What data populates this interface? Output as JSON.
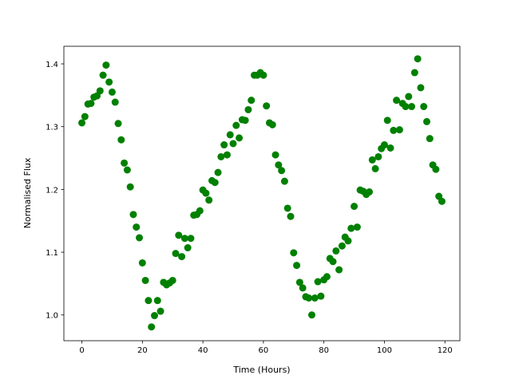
{
  "chart_data": {
    "type": "scatter",
    "xlabel": "Time (Hours)",
    "ylabel": "Normalised Flux",
    "color": "#008000",
    "x": [
      0,
      1,
      2,
      3,
      4,
      5,
      6,
      7,
      8,
      9,
      10,
      11,
      12,
      13,
      14,
      15,
      16,
      17,
      18,
      19,
      20,
      21,
      22,
      23,
      24,
      25,
      26,
      27,
      28,
      29,
      30,
      31,
      32,
      33,
      34,
      35,
      36,
      37,
      38,
      39,
      40,
      41,
      42,
      43,
      44,
      45,
      46,
      47,
      48,
      49,
      50,
      51,
      52,
      53,
      54,
      55,
      56,
      57,
      58,
      59,
      60,
      61,
      62,
      63,
      64,
      65,
      66,
      67,
      68,
      69,
      70,
      71,
      72,
      73,
      74,
      75,
      76,
      77,
      78,
      79,
      80,
      81,
      82,
      83,
      84,
      85,
      86,
      87,
      88,
      89,
      90,
      91,
      92,
      93,
      94,
      95,
      96,
      97,
      98,
      99,
      100,
      101,
      102,
      103,
      104,
      105,
      106,
      107,
      108,
      109,
      110,
      111,
      112,
      113,
      114,
      115,
      116,
      117,
      118,
      119
    ],
    "y": [
      1.306,
      1.316,
      1.336,
      1.337,
      1.347,
      1.349,
      1.357,
      1.382,
      1.398,
      1.371,
      1.355,
      1.339,
      1.305,
      1.279,
      1.242,
      1.231,
      1.204,
      1.16,
      1.14,
      1.123,
      1.083,
      1.055,
      1.023,
      0.981,
      0.999,
      1.023,
      1.006,
      1.052,
      1.048,
      1.051,
      1.055,
      1.098,
      1.127,
      1.093,
      1.122,
      1.107,
      1.122,
      1.159,
      1.16,
      1.166,
      1.199,
      1.194,
      1.183,
      1.214,
      1.211,
      1.227,
      1.252,
      1.271,
      1.255,
      1.287,
      1.273,
      1.302,
      1.282,
      1.311,
      1.31,
      1.327,
      1.342,
      1.382,
      1.382,
      1.386,
      1.382,
      1.333,
      1.306,
      1.303,
      1.255,
      1.239,
      1.23,
      1.213,
      1.17,
      1.157,
      1.099,
      1.079,
      1.052,
      1.043,
      1.029,
      1.027,
      1.0,
      1.027,
      1.053,
      1.03,
      1.056,
      1.061,
      1.09,
      1.085,
      1.102,
      1.072,
      1.11,
      1.124,
      1.118,
      1.138,
      1.173,
      1.14,
      1.199,
      1.197,
      1.192,
      1.196,
      1.247,
      1.233,
      1.252,
      1.265,
      1.271,
      1.31,
      1.266,
      1.294,
      1.342,
      1.295,
      1.337,
      1.332,
      1.348,
      1.332,
      1.386,
      1.408,
      1.362,
      1.332,
      1.308,
      1.281,
      1.239,
      1.232,
      1.189,
      1.181
    ],
    "xlim": [
      -5.95,
      124.95
    ],
    "ylim": [
      0.959,
      1.428
    ],
    "xticks": [
      0,
      20,
      40,
      60,
      80,
      100,
      120
    ],
    "yticks": [
      {
        "value": 1,
        "label": "1.0"
      },
      1.1,
      1.2,
      1.3,
      1.4
    ]
  }
}
